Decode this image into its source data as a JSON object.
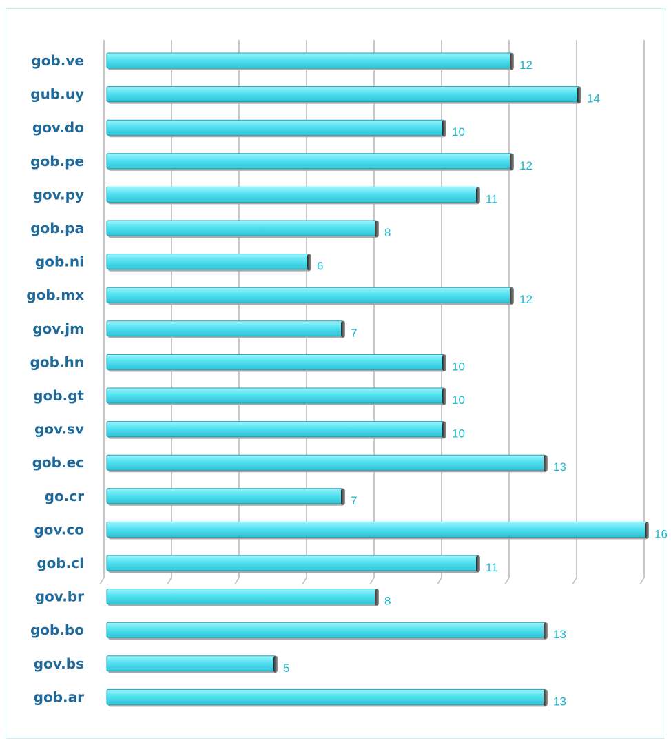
{
  "chart_data": {
    "type": "bar",
    "orientation": "horizontal",
    "title": "",
    "xlabel": "",
    "ylabel": "",
    "categories": [
      "gob.ve",
      "gub.uy",
      "gov.do",
      "gob.pe",
      "gov.py",
      "gob.pa",
      "gob.ni",
      "gob.mx",
      "gov.jm",
      "gob.hn",
      "gob.gt",
      "gov.sv",
      "gob.ec",
      "go.cr",
      "gov.co",
      "gob.cl",
      "gov.br",
      "gob.bo",
      "gov.bs",
      "gob.ar"
    ],
    "values": [
      12,
      14,
      10,
      12,
      11,
      8,
      6,
      12,
      7,
      10,
      10,
      10,
      13,
      7,
      16,
      11,
      8,
      13,
      5,
      13
    ],
    "xlim": [
      0,
      16
    ],
    "grid": true,
    "legend": "none",
    "bar_color": "#4fe0f0",
    "label_color": "#1f6a9a",
    "value_label_color": "#19b8cc"
  }
}
